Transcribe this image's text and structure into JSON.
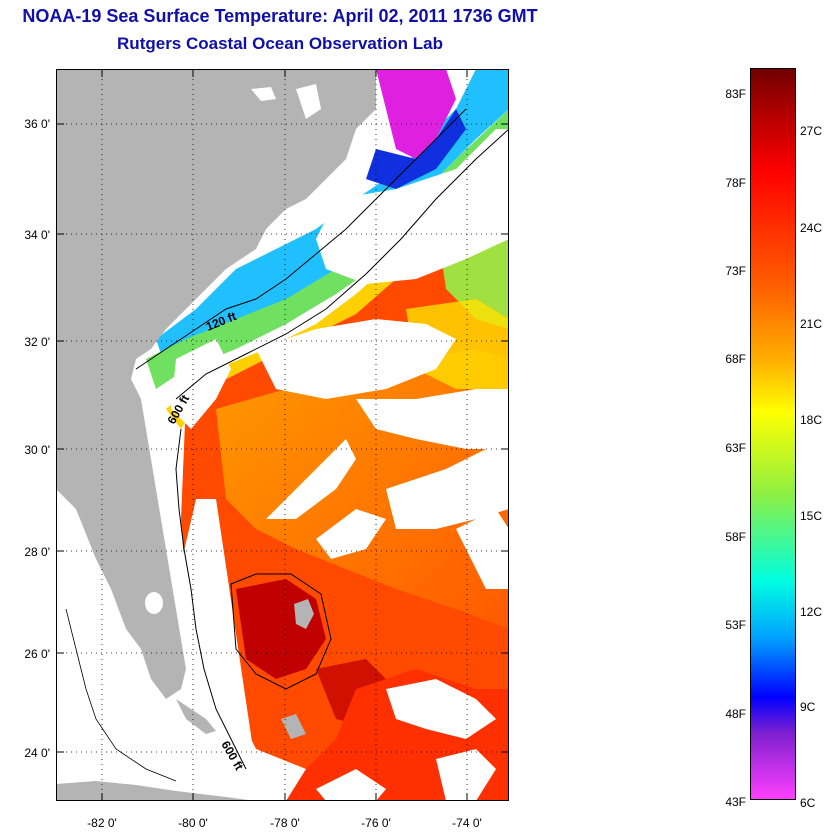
{
  "header": {
    "title": "NOAA-19 Sea Surface Temperature:  April 02, 2011 1736 GMT",
    "subtitle": "Rutgers Coastal Ocean Observation Lab"
  },
  "map": {
    "lat_labels": [
      "36 0'",
      "34 0'",
      "32 0'",
      "30 0'",
      "28 0'",
      "26 0'",
      "24 0'"
    ],
    "lon_labels": [
      "-82 0'",
      "-80 0'",
      "-78 0'",
      "-76 0'",
      "-74 0'"
    ],
    "contour_labels": [
      "120 ft",
      "600 ft",
      "600 ft"
    ],
    "colors": {
      "land": "#b4b4b4",
      "cloud": "#ffffff",
      "warm_water": "#ff3800",
      "gulf_stream": "#ff8000",
      "shelf_cool": "#28c8ff"
    }
  },
  "colorbar": {
    "f_labels": [
      "83F",
      "78F",
      "73F",
      "68F",
      "63F",
      "58F",
      "53F",
      "48F",
      "43F"
    ],
    "c_labels": [
      "27C",
      "24C",
      "21C",
      "18C",
      "15C",
      "12C",
      "9C",
      "6C"
    ],
    "range_f": [
      43,
      83
    ],
    "range_c": [
      6,
      28
    ]
  }
}
